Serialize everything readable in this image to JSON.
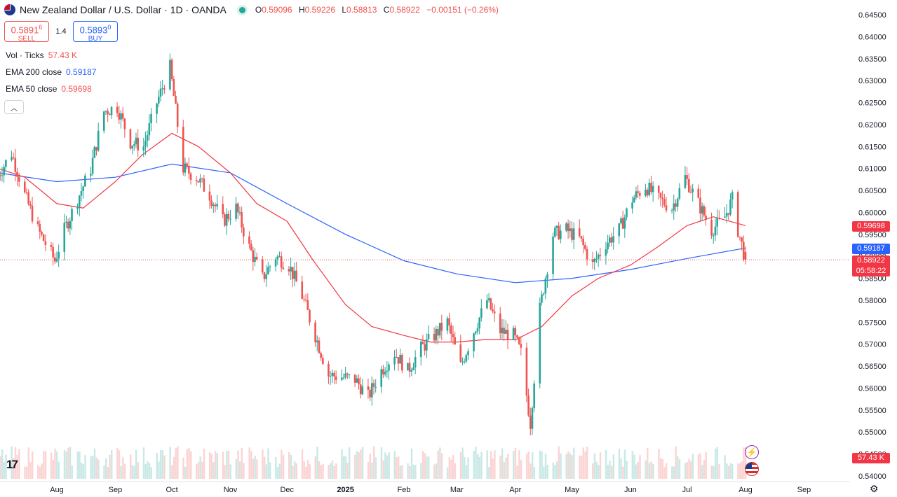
{
  "header": {
    "symbol": "New Zealand Dollar / U.S. Dollar · 1D · OANDA",
    "ohlc": [
      {
        "k": "O",
        "v": "0.59096"
      },
      {
        "k": "H",
        "v": "0.59226"
      },
      {
        "k": "L",
        "v": "0.58813"
      },
      {
        "k": "C",
        "v": "0.58922"
      },
      {
        "k": "",
        "v": "−0.00151 (−0.26%)"
      }
    ]
  },
  "trade": {
    "sell_price": "0.5891",
    "sell_sup": "6",
    "sell_label": "SELL",
    "spread": "1.4",
    "buy_price": "0.5893",
    "buy_sup": "0",
    "buy_label": "BUY"
  },
  "legend": {
    "vol_label": "Vol · Ticks",
    "vol_value": "57.43 K",
    "ema200_label": "EMA 200 close",
    "ema200_value": "0.59187",
    "ema50_label": "EMA 50 close",
    "ema50_value": "0.59698"
  },
  "badges": {
    "ema50": "0.59698",
    "ema200": "0.59187",
    "last": "0.58922",
    "countdown": "05:58:22",
    "volume": "57.43 K"
  },
  "colors": {
    "up": "#26a69a",
    "down": "#ef5350",
    "ema200": "#2962ff",
    "ema50": "#f23645"
  },
  "icons": [
    "flag-icon",
    "market-status-icon",
    "collapse-chevron-icon",
    "tradingview-logo",
    "lightning-icon",
    "us-flag-icon",
    "settings-gear-icon"
  ],
  "chart_data": {
    "type": "candlestick",
    "title": "New Zealand Dollar / U.S. Dollar · 1D · OANDA",
    "ylim": [
      0.54,
      0.645
    ],
    "y_ticks": [
      "0.64500",
      "0.64000",
      "0.63500",
      "0.63000",
      "0.62500",
      "0.62000",
      "0.61500",
      "0.61000",
      "0.60500",
      "0.60000",
      "0.59500",
      "0.59000",
      "0.58500",
      "0.58000",
      "0.57500",
      "0.57000",
      "0.56500",
      "0.56000",
      "0.55500",
      "0.55000",
      "0.54500",
      "0.54000"
    ],
    "x_ticks": [
      "Aug",
      "Sep",
      "Oct",
      "Nov",
      "Dec",
      "2025",
      "Feb",
      "Mar",
      "Apr",
      "May",
      "Jun",
      "Jul",
      "Aug",
      "Sep"
    ],
    "x_tick_dates": [
      "2024-08-01",
      "2024-09-01",
      "2024-10-01",
      "2024-11-01",
      "2024-12-01",
      "2025-01-01",
      "2025-02-01",
      "2025-03-01",
      "2025-04-01",
      "2025-05-01",
      "2025-06-01",
      "2025-07-01",
      "2025-08-01",
      "2025-09-01"
    ],
    "price_waypoints": [
      [
        "2024-07-01",
        0.6085
      ],
      [
        "2024-07-08",
        0.6135
      ],
      [
        "2024-07-15",
        0.604
      ],
      [
        "2024-07-22",
        0.596
      ],
      [
        "2024-07-31",
        0.589
      ],
      [
        "2024-08-05",
        0.596
      ],
      [
        "2024-08-12",
        0.603
      ],
      [
        "2024-08-19",
        0.61
      ],
      [
        "2024-08-26",
        0.623
      ],
      [
        "2024-09-02",
        0.624
      ],
      [
        "2024-09-09",
        0.616
      ],
      [
        "2024-09-16",
        0.615
      ],
      [
        "2024-09-23",
        0.625
      ],
      [
        "2024-09-30",
        0.633
      ],
      [
        "2024-10-07",
        0.61
      ],
      [
        "2024-10-14",
        0.608
      ],
      [
        "2024-10-21",
        0.604
      ],
      [
        "2024-10-28",
        0.598
      ],
      [
        "2024-11-04",
        0.601
      ],
      [
        "2024-11-11",
        0.592
      ],
      [
        "2024-11-18",
        0.585
      ],
      [
        "2024-11-25",
        0.59
      ],
      [
        "2024-12-02",
        0.588
      ],
      [
        "2024-12-09",
        0.581
      ],
      [
        "2024-12-16",
        0.572
      ],
      [
        "2024-12-23",
        0.563
      ],
      [
        "2025-01-06",
        0.562
      ],
      [
        "2025-01-13",
        0.558
      ],
      [
        "2025-01-20",
        0.564
      ],
      [
        "2025-01-27",
        0.568
      ],
      [
        "2025-02-03",
        0.564
      ],
      [
        "2025-02-10",
        0.569
      ],
      [
        "2025-02-17",
        0.572
      ],
      [
        "2025-02-24",
        0.575
      ],
      [
        "2025-03-03",
        0.565
      ],
      [
        "2025-03-10",
        0.573
      ],
      [
        "2025-03-17",
        0.58
      ],
      [
        "2025-03-24",
        0.573
      ],
      [
        "2025-03-31",
        0.572
      ],
      [
        "2025-04-04",
        0.568
      ],
      [
        "2025-04-09",
        0.552
      ],
      [
        "2025-04-14",
        0.578
      ],
      [
        "2025-04-21",
        0.595
      ],
      [
        "2025-04-28",
        0.596
      ],
      [
        "2025-05-05",
        0.594
      ],
      [
        "2025-05-12",
        0.588
      ],
      [
        "2025-05-19",
        0.593
      ],
      [
        "2025-05-26",
        0.596
      ],
      [
        "2025-06-02",
        0.603
      ],
      [
        "2025-06-09",
        0.606
      ],
      [
        "2025-06-16",
        0.603
      ],
      [
        "2025-06-23",
        0.601
      ],
      [
        "2025-06-30",
        0.608
      ],
      [
        "2025-07-07",
        0.602
      ],
      [
        "2025-07-14",
        0.596
      ],
      [
        "2025-07-21",
        0.599
      ],
      [
        "2025-07-25",
        0.603
      ],
      [
        "2025-07-28",
        0.596
      ],
      [
        "2025-08-01",
        0.5892
      ]
    ],
    "series": [
      {
        "name": "EMA 200 close",
        "color": "#2962ff",
        "points": [
          [
            "2024-07-01",
            0.609
          ],
          [
            "2024-08-01",
            0.607
          ],
          [
            "2024-09-01",
            0.608
          ],
          [
            "2024-10-01",
            0.611
          ],
          [
            "2024-11-01",
            0.609
          ],
          [
            "2024-12-01",
            0.602
          ],
          [
            "2025-01-01",
            0.595
          ],
          [
            "2025-02-01",
            0.589
          ],
          [
            "2025-03-01",
            0.586
          ],
          [
            "2025-04-01",
            0.584
          ],
          [
            "2025-05-01",
            0.585
          ],
          [
            "2025-06-01",
            0.587
          ],
          [
            "2025-07-01",
            0.5895
          ],
          [
            "2025-08-01",
            0.5919
          ]
        ]
      },
      {
        "name": "EMA 50 close",
        "color": "#f23645",
        "points": [
          [
            "2024-07-01",
            0.61
          ],
          [
            "2024-07-15",
            0.608
          ],
          [
            "2024-08-01",
            0.602
          ],
          [
            "2024-08-15",
            0.601
          ],
          [
            "2024-09-01",
            0.607
          ],
          [
            "2024-09-15",
            0.613
          ],
          [
            "2024-10-01",
            0.618
          ],
          [
            "2024-10-15",
            0.615
          ],
          [
            "2024-11-01",
            0.609
          ],
          [
            "2024-11-15",
            0.602
          ],
          [
            "2024-12-01",
            0.598
          ],
          [
            "2024-12-15",
            0.589
          ],
          [
            "2025-01-01",
            0.579
          ],
          [
            "2025-01-15",
            0.574
          ],
          [
            "2025-02-01",
            0.572
          ],
          [
            "2025-02-15",
            0.5705
          ],
          [
            "2025-03-01",
            0.5705
          ],
          [
            "2025-03-15",
            0.571
          ],
          [
            "2025-04-01",
            0.571
          ],
          [
            "2025-04-15",
            0.574
          ],
          [
            "2025-05-01",
            0.581
          ],
          [
            "2025-05-15",
            0.585
          ],
          [
            "2025-06-01",
            0.588
          ],
          [
            "2025-06-15",
            0.592
          ],
          [
            "2025-07-01",
            0.597
          ],
          [
            "2025-07-15",
            0.599
          ],
          [
            "2025-08-01",
            0.597
          ]
        ]
      }
    ],
    "current_price": 0.58922,
    "volume_last": "57.43 K"
  }
}
